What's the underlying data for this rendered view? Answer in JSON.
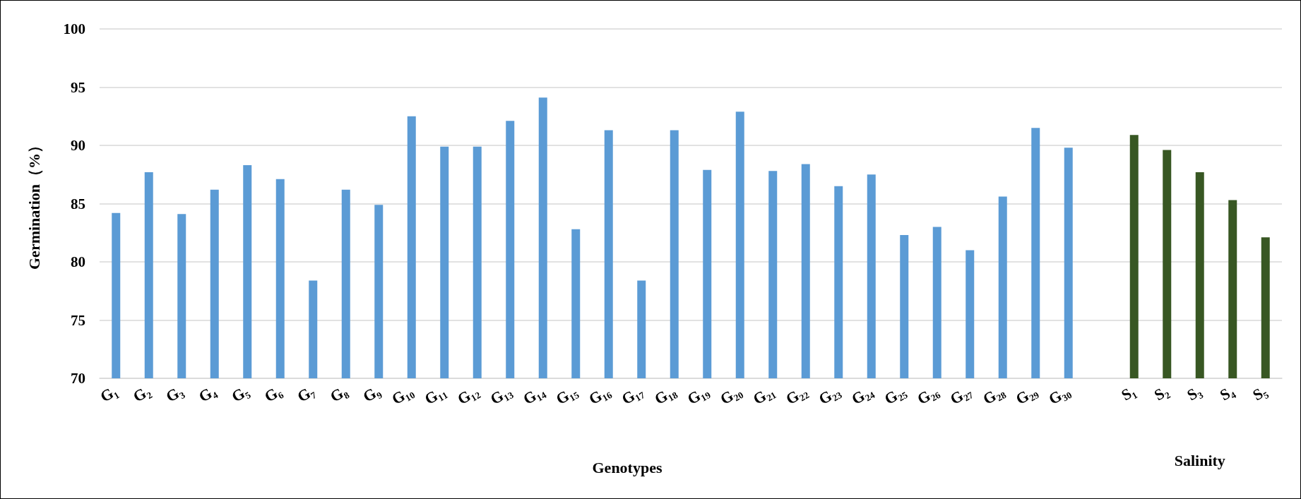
{
  "chart_data": {
    "type": "bar",
    "xlabel": "Genotypes",
    "ylabel": "Germination（%）",
    "annotations": [
      "Salinity"
    ],
    "categories": [
      "G₁",
      "G₂",
      "G₃",
      "G₄",
      "G₅",
      "G₆",
      "G₇",
      "G₈",
      "G₉",
      "G₁₀",
      "G₁₁",
      "G₁₂",
      "G₁₃",
      "G₁₄",
      "G₁₅",
      "G₁₆",
      "G₁₇",
      "G₁₈",
      "G₁₉",
      "G₂₀",
      "G₂₁",
      "G₂₂",
      "G₂₃",
      "G₂₄",
      "G₂₅",
      "G₂₆",
      "G₂₇",
      "G₂₈",
      "G₂₉",
      "G₃₀",
      null,
      "S₁",
      "S₂",
      "S₃",
      "S₄",
      "S₅"
    ],
    "values": [
      84.2,
      87.7,
      84.1,
      86.2,
      88.3,
      87.1,
      78.4,
      86.2,
      84.9,
      92.5,
      89.9,
      89.9,
      92.1,
      94.1,
      82.8,
      91.3,
      78.4,
      91.3,
      87.9,
      92.9,
      87.8,
      88.4,
      86.5,
      87.5,
      82.3,
      83.0,
      81.0,
      85.6,
      91.5,
      89.8,
      null,
      90.9,
      89.6,
      87.7,
      85.3,
      82.1
    ],
    "colors": [
      "#5b9bd5",
      "#5b9bd5",
      "#5b9bd5",
      "#5b9bd5",
      "#5b9bd5",
      "#5b9bd5",
      "#5b9bd5",
      "#5b9bd5",
      "#5b9bd5",
      "#5b9bd5",
      "#5b9bd5",
      "#5b9bd5",
      "#5b9bd5",
      "#5b9bd5",
      "#5b9bd5",
      "#5b9bd5",
      "#5b9bd5",
      "#5b9bd5",
      "#5b9bd5",
      "#5b9bd5",
      "#5b9bd5",
      "#5b9bd5",
      "#5b9bd5",
      "#5b9bd5",
      "#5b9bd5",
      "#5b9bd5",
      "#5b9bd5",
      "#5b9bd5",
      "#5b9bd5",
      "#5b9bd5",
      "#5b9bd5",
      "#385723",
      "#385723",
      "#385723",
      "#385723",
      "#385723"
    ],
    "ylim": [
      70,
      100
    ],
    "yticks": [
      70,
      75,
      80,
      85,
      90,
      95,
      100
    ],
    "grid": "y"
  }
}
